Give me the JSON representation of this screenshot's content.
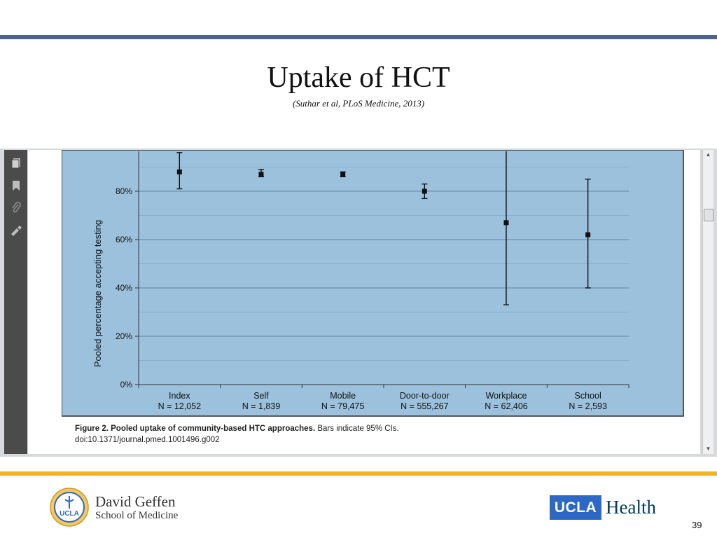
{
  "slide": {
    "title": "Uptake of HCT",
    "subtitle": "(Suthar et al, PLoS Medicine, 2013)",
    "page_number": "39"
  },
  "viewer": {
    "toolbar_icons": [
      "pages-icon",
      "bookmark-icon",
      "attachment-icon",
      "signature-icon"
    ]
  },
  "figure": {
    "caption_bold": "Figure 2. Pooled uptake of community-based HTC approaches.",
    "caption_rest": " Bars indicate 95% CIs.",
    "doi": "doi:10.1371/journal.pmed.1001496.g002"
  },
  "footer": {
    "seal_text": "UCLA",
    "school_line1": "David Geffen",
    "school_line2": "School of Medicine",
    "ucla_badge": "UCLA",
    "health_word": "Health"
  },
  "colors": {
    "plot_bg": "#9bc1dc",
    "grid": "#6d8fae",
    "top_rule": "#4e6390",
    "bottom_rule": "#f2b51b",
    "ucla_blue": "#2d68c4"
  },
  "chart_data": {
    "type": "scatter",
    "ylabel": "Pooled percentage accepting testing",
    "ylim": [
      0,
      100
    ],
    "yticks": [
      0,
      20,
      40,
      60,
      80
    ],
    "ytick_labels": [
      "0%",
      "20%",
      "40%",
      "60%",
      "80%"
    ],
    "grid": true,
    "categories": [
      {
        "name": "Index",
        "n": "N = 12,052",
        "value": 88,
        "low": 81,
        "high": 96
      },
      {
        "name": "Self",
        "n": "N = 1,839",
        "value": 87,
        "low": 86,
        "high": 89
      },
      {
        "name": "Mobile",
        "n": "N = 79,475",
        "value": 87,
        "low": 86,
        "high": 88
      },
      {
        "name": "Door-to-door",
        "n": "N = 555,267",
        "value": 80,
        "low": 77,
        "high": 83
      },
      {
        "name": "Workplace",
        "n": "N = 62,406",
        "value": 67,
        "low": 33,
        "high": 100
      },
      {
        "name": "School",
        "n": "N = 2,593",
        "value": 62,
        "low": 40,
        "high": 85
      }
    ]
  }
}
